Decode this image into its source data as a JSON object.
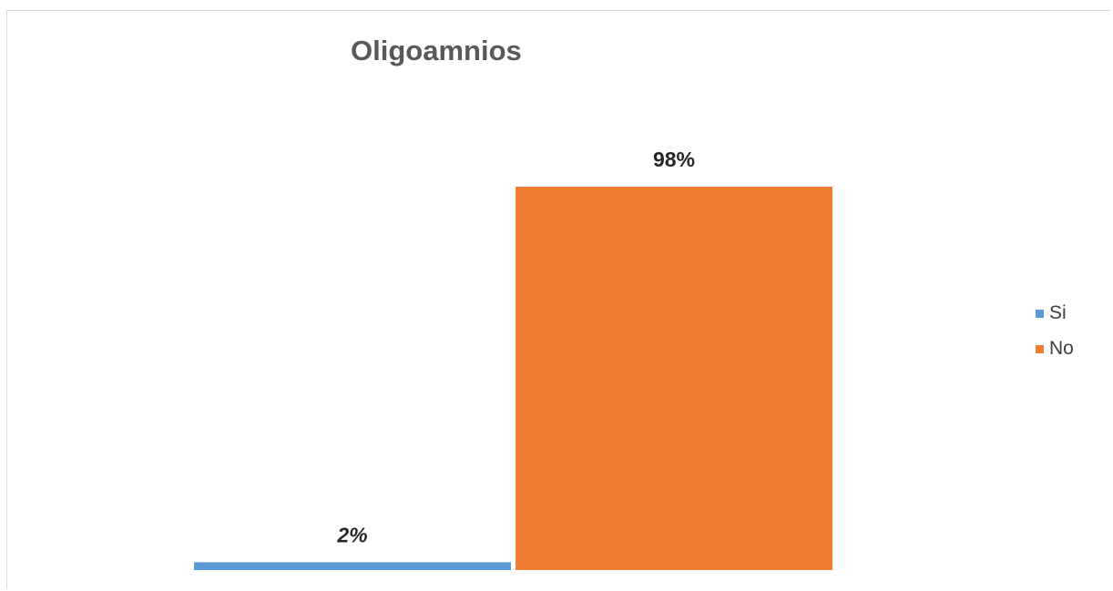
{
  "chart_data": {
    "type": "bar",
    "title": "Oligoamnios",
    "categories": [
      "Si",
      "No"
    ],
    "values": [
      2,
      98
    ],
    "data_labels": [
      "2%",
      "98%"
    ],
    "ylim": [
      0,
      98
    ],
    "grid": false,
    "legend": "right",
    "series_colors": [
      "#5b9bd5",
      "#ed7d31"
    ],
    "legend_items": [
      {
        "label": "Si",
        "color": "#5b9bd5"
      },
      {
        "label": "No",
        "color": "#ed7d31"
      }
    ]
  }
}
